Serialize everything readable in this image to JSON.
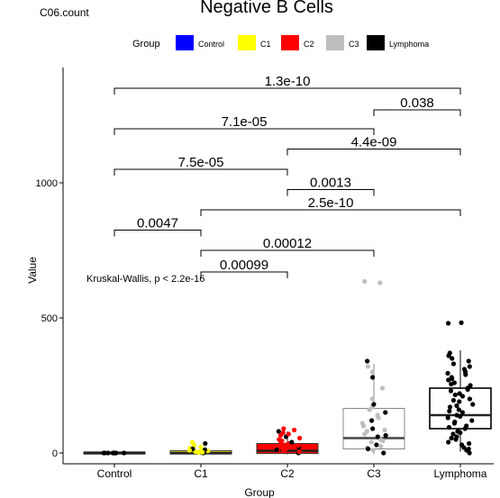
{
  "header": {
    "corner_label": "C06.count",
    "title": "Negative B Cells"
  },
  "chart_data": {
    "type": "boxplot",
    "xlabel": "Group",
    "ylabel": "Value",
    "ylim": [
      -25,
      1460
    ],
    "yticks": [
      0,
      500,
      1000
    ],
    "categories": [
      "Control",
      "C1",
      "C2",
      "C3",
      "Lymphoma"
    ],
    "legend": {
      "title": "Group",
      "placement": "top",
      "items": [
        {
          "label": "Control",
          "color": "#0000ff"
        },
        {
          "label": "C1",
          "color": "#ffff00"
        },
        {
          "label": "C2",
          "color": "#ff0000"
        },
        {
          "label": "C3",
          "color": "#bebebe"
        },
        {
          "label": "Lymphoma",
          "color": "#000000"
        }
      ]
    },
    "boxes": [
      {
        "group": "Control",
        "q1": -4,
        "median": -1,
        "q3": 4,
        "whisker_low": -6,
        "whisker_high": 6
      },
      {
        "group": "C1",
        "q1": -4,
        "median": 0,
        "q3": 8,
        "whisker_low": -6,
        "whisker_high": 25
      },
      {
        "group": "C2",
        "q1": -2,
        "median": 8,
        "q3": 35,
        "whisker_low": -6,
        "whisker_high": 80
      },
      {
        "group": "C3",
        "q1": 15,
        "median": 55,
        "q3": 165,
        "whisker_low": -6,
        "whisker_high": 330
      },
      {
        "group": "Lymphoma",
        "q1": 90,
        "median": 140,
        "q3": 240,
        "whisker_low": 5,
        "whisker_high": 380
      }
    ],
    "points": [
      {
        "group": "Control",
        "values": [
          0,
          0,
          0,
          0,
          0,
          0,
          0,
          0
        ]
      },
      {
        "group": "C1",
        "values": [
          0,
          2,
          5,
          8,
          12,
          18,
          22,
          28,
          35,
          40,
          3,
          6,
          15,
          10
        ]
      },
      {
        "group": "C2",
        "values": [
          0,
          5,
          10,
          15,
          20,
          25,
          30,
          35,
          40,
          45,
          50,
          55,
          60,
          65,
          70,
          75,
          80,
          85,
          90,
          8,
          12,
          28,
          38
        ]
      },
      {
        "group": "C3",
        "values": [
          0,
          10,
          20,
          30,
          40,
          50,
          60,
          70,
          80,
          90,
          100,
          110,
          120,
          130,
          140,
          150,
          160,
          170,
          180,
          200,
          240,
          280,
          300,
          320,
          340,
          630,
          635,
          15,
          25,
          45,
          65,
          85
        ]
      },
      {
        "group": "Lymphoma",
        "values": [
          0,
          10,
          20,
          30,
          40,
          50,
          60,
          70,
          80,
          90,
          100,
          110,
          120,
          130,
          140,
          150,
          160,
          170,
          180,
          190,
          200,
          210,
          220,
          230,
          240,
          250,
          260,
          270,
          280,
          290,
          300,
          310,
          320,
          330,
          340,
          350,
          360,
          370,
          480,
          482,
          15,
          35,
          55,
          75,
          95,
          115,
          135,
          155,
          175,
          195,
          215,
          235,
          255,
          275,
          295
        ]
      }
    ],
    "comparisons": [
      {
        "from": "Control",
        "to": "Lymphoma",
        "y": 1350,
        "label": "1.3e-10"
      },
      {
        "from": "C3",
        "to": "Lymphoma",
        "y": 1270,
        "label": "0.038"
      },
      {
        "from": "Control",
        "to": "C3",
        "y": 1200,
        "label": "7.1e-05"
      },
      {
        "from": "C2",
        "to": "Lymphoma",
        "y": 1125,
        "label": "4.4e-09"
      },
      {
        "from": "Control",
        "to": "C2",
        "y": 1050,
        "label": "7.5e-05"
      },
      {
        "from": "C2",
        "to": "C3",
        "y": 975,
        "label": "0.0013"
      },
      {
        "from": "C1",
        "to": "Lymphoma",
        "y": 900,
        "label": "2.5e-10"
      },
      {
        "from": "Control",
        "to": "C1",
        "y": 825,
        "label": "0.0047"
      },
      {
        "from": "C1",
        "to": "C3",
        "y": 750,
        "label": "0.00012"
      },
      {
        "from": "C1",
        "to": "C2",
        "y": 670,
        "label": "0.00099"
      }
    ],
    "annotation": "Kruskal-Wallis, p < 2.2e-16"
  }
}
